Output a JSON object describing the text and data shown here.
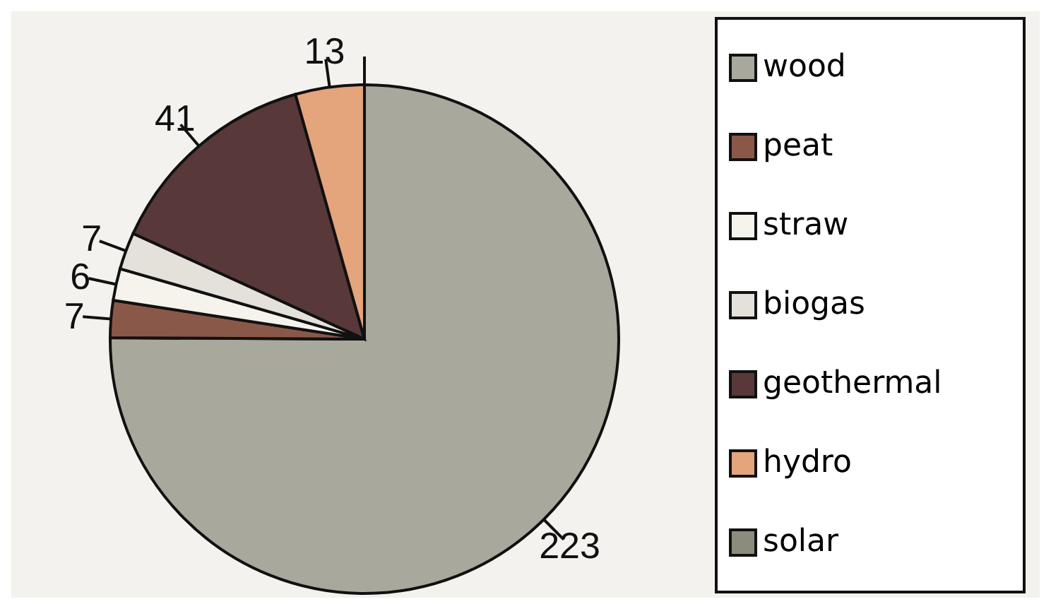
{
  "chart_data": {
    "type": "pie",
    "categories": [
      "wood",
      "peat",
      "straw",
      "biogas",
      "geothermal",
      "hydro",
      "solar"
    ],
    "values": [
      223,
      7,
      6,
      7,
      41,
      13,
      0
    ],
    "value_labels": [
      "223",
      "7",
      "6",
      "7",
      "41",
      "13",
      null
    ],
    "colors": [
      "#a8a89c",
      "#8a5848",
      "#f6f2ec",
      "#e4e0da",
      "#583838",
      "#e4a47c",
      "#8c8c7c"
    ],
    "legend": "right"
  }
}
